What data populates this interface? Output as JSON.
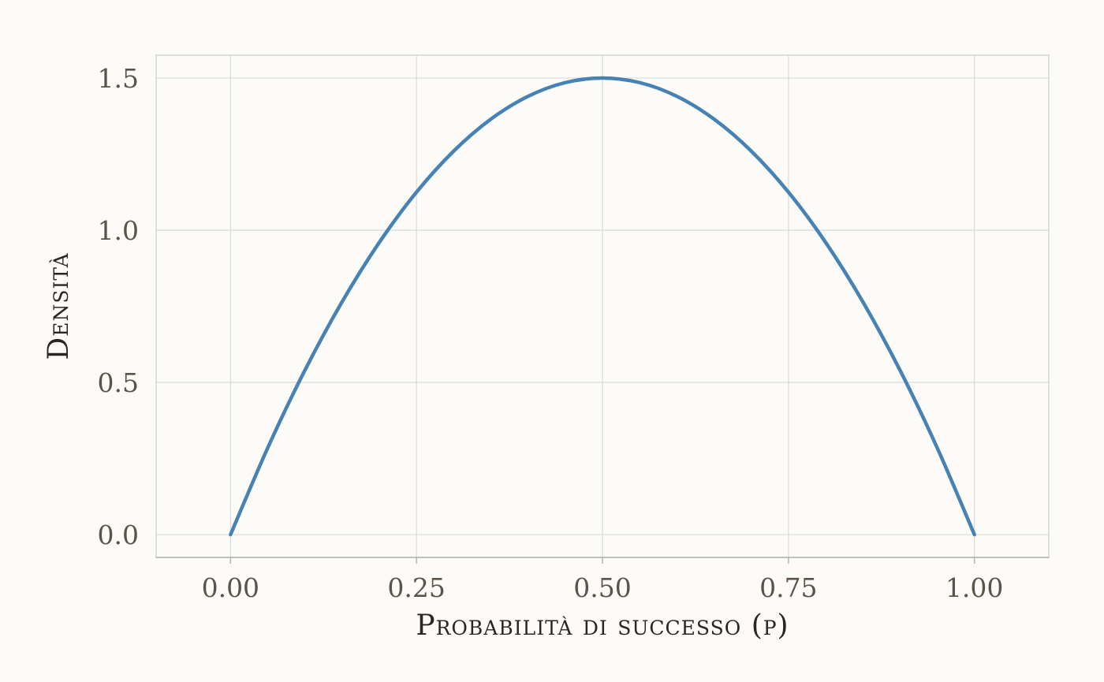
{
  "chart_data": {
    "type": "line",
    "title": "",
    "xlabel": "Probabilità di successo (p)",
    "ylabel": "Densità",
    "xlim": [
      -0.1,
      1.1
    ],
    "ylim": [
      -0.075,
      1.575
    ],
    "x_ticks": [
      0,
      0.25,
      0.5,
      0.75,
      1
    ],
    "x_tick_labels": [
      "0.00",
      "0.25",
      "0.50",
      "0.75",
      "1.00"
    ],
    "y_ticks": [
      0,
      0.5,
      1,
      1.5
    ],
    "y_tick_labels": [
      "0.0",
      "0.5",
      "1.0",
      "1.5"
    ],
    "grid": true,
    "legend": "none",
    "series": [
      {
        "color": "#4682b4",
        "x": [
          0,
          0.05,
          0.1,
          0.15,
          0.2,
          0.25,
          0.3,
          0.35,
          0.4,
          0.45,
          0.5,
          0.55,
          0.6,
          0.65,
          0.7,
          0.75,
          0.8,
          0.85,
          0.9,
          0.95,
          1
        ],
        "y": [
          0,
          0.285,
          0.54,
          0.765,
          0.96,
          1.125,
          1.26,
          1.365,
          1.44,
          1.485,
          1.5,
          1.485,
          1.44,
          1.365,
          1.26,
          1.125,
          0.96,
          0.765,
          0.54,
          0.285,
          0
        ]
      }
    ]
  }
}
